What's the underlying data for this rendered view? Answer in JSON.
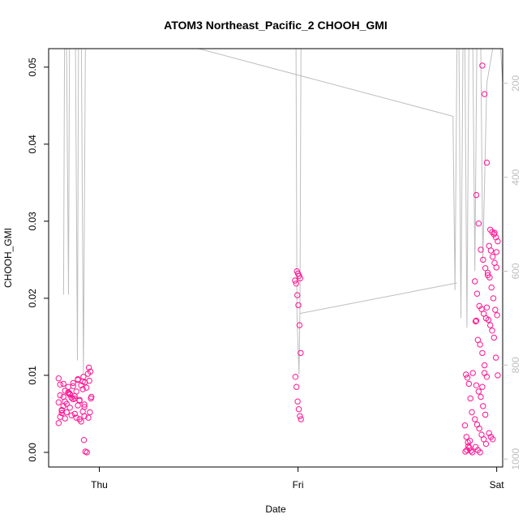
{
  "chart_data": {
    "type": "scatter",
    "title": "ATOM3 Northeast_Pacific_2 CHOOH_GMI",
    "xlabel": "Date",
    "ylabel": "CHOOH_GMI",
    "x_ticks": [
      "Thu",
      "Fri",
      "Sat"
    ],
    "x_tick_values": [
      0,
      1,
      2
    ],
    "xlim": [
      -0.255,
      2.03
    ],
    "ylim": [
      -0.0019,
      0.0524
    ],
    "y_ticks": [
      "0.00",
      "0.01",
      "0.02",
      "0.03",
      "0.04",
      "0.05"
    ],
    "y_tick_values": [
      0,
      0.01,
      0.02,
      0.03,
      0.04,
      0.05
    ],
    "y2_ticks": [
      "200",
      "400",
      "600",
      "800",
      "1000"
    ],
    "y2_tick_values": [
      200,
      400,
      600,
      800,
      1000
    ],
    "y2_lim": [
      1017,
      126
    ],
    "grid": false,
    "colors": {
      "points": "#FF1493",
      "pressure_line": "#BEBEBE",
      "axes": "#000000",
      "secondary_axis": "#BEBEBE"
    },
    "series": [
      {
        "kind": "points",
        "clusters": [
          {
            "x_center": -0.14,
            "x_spread": 0.13,
            "values": [
              0.0065,
              0.0072,
              0.0085,
              0.009,
              0.0095,
              0.0092,
              0.0088,
              0.008,
              0.0075,
              0.007,
              0.0068,
              0.0062,
              0.0055,
              0.0052,
              0.0048,
              0.0045,
              0.004,
              0.0038,
              0.006,
              0.0078,
              0.0086,
              0.0094,
              0.0082,
              0.0074,
              0.0066,
              0.0058,
              0.005,
              0.0043,
              0.0047,
              0.0054,
              0.0063,
              0.0071,
              0.0079,
              0.0087,
              0.0096,
              0.0089,
              0.0077,
              0.0069,
              0.0061,
              0.0053,
              0.0046,
              0.0044,
              0.0076,
              0.0073,
              0.0067,
              0.0059,
              0.0051
            ]
          },
          {
            "x_center": -0.06,
            "x_spread": 0.04,
            "values": [
              0.011,
              0.0105,
              0.0098,
              0.0091,
              0.0084,
              0.0102,
              0.0093,
              0.007,
              0.0016,
              0.0001,
              0.0,
              0.0045,
              0.0052,
              0.0072
            ]
          },
          {
            "x_center": 1.0,
            "x_spread": 0.03,
            "values": [
              0.0235,
              0.0232,
              0.0229,
              0.0226,
              0.0223,
              0.0219,
              0.0204,
              0.0191,
              0.0165,
              0.0129,
              0.0098,
              0.0085,
              0.0066,
              0.0056,
              0.0047,
              0.0043
            ]
          },
          {
            "x_center": 1.86,
            "x_spread": 0.04,
            "values": [
              0.0103,
              0.0101,
              0.0097,
              0.0089,
              0.007,
              0.0052,
              0.0035,
              0.002,
              0.0013,
              0.0006,
              0.0002,
              0.0,
              0.0001,
              0.0003,
              0.0008,
              0.0015
            ]
          },
          {
            "x_center": 1.92,
            "x_spread": 0.06,
            "values": [
              0.0502,
              0.0465,
              0.0376,
              0.0334,
              0.0297,
              0.0263,
              0.025,
              0.0239,
              0.0222,
              0.0206,
              0.019,
              0.0186,
              0.018,
              0.0174,
              0.017,
              0.0146,
              0.014,
              0.0129,
              0.0113,
              0.0098,
              0.0087,
              0.0079,
              0.0072,
              0.006,
              0.0049,
              0.0043,
              0.0036,
              0.0031,
              0.0023,
              0.0017,
              0.0011,
              0.0007,
              0.0003,
              0.0,
              0.0085,
              0.0103,
              0.0188,
              0.0171
            ]
          },
          {
            "x_center": 1.98,
            "x_spread": 0.05,
            "values": [
              0.0289,
              0.0286,
              0.0283,
              0.0279,
              0.0274,
              0.0268,
              0.0262,
              0.0254,
              0.0246,
              0.024,
              0.0233,
              0.0227,
              0.0214,
              0.02,
              0.0185,
              0.0178,
              0.0172,
              0.0165,
              0.0158,
              0.0149,
              0.0123,
              0.01,
              0.0025,
              0.002,
              0.0017,
              0.0285,
              0.026,
              0.023
            ]
          }
        ]
      }
    ]
  }
}
